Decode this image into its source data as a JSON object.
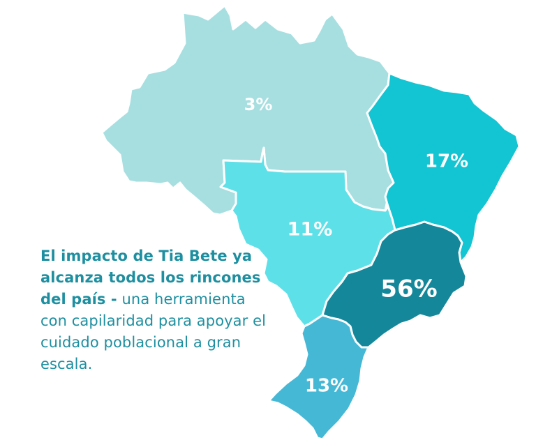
{
  "map": {
    "regions": [
      {
        "id": "norte",
        "percent": "3%",
        "color": "#a7dfe1"
      },
      {
        "id": "nordeste",
        "percent": "17%",
        "color": "#13c4d2"
      },
      {
        "id": "centro-oeste",
        "percent": "11%",
        "color": "#5de0e8"
      },
      {
        "id": "sudeste",
        "percent": "56%",
        "color": "#15879a"
      },
      {
        "id": "sul",
        "percent": "13%",
        "color": "#45b8d6"
      }
    ]
  },
  "caption": {
    "bold_text": "El impacto de Tia Bete ya alcanza todos los rincones del país -",
    "regular_text": " una herramienta con capilaridad para apoyar el cuidado poblacional a gran escala."
  }
}
